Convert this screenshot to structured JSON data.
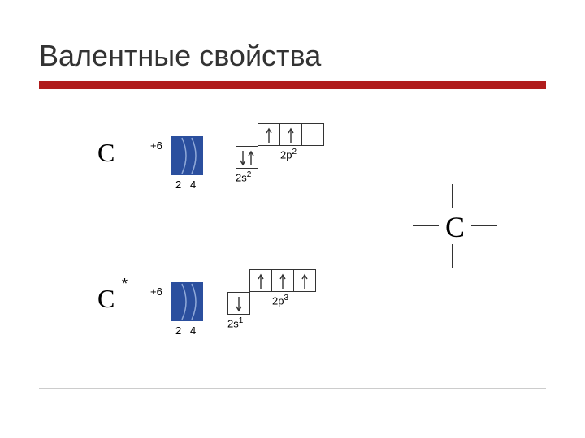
{
  "title": "Валентные свойства",
  "colors": {
    "accent_red": "#b01c1c",
    "shell_blue": "#2b4f9e",
    "shell_arc": "#8fa8d8",
    "line_gray": "#555555",
    "text": "#333333",
    "bottom_bar": "#cccccc"
  },
  "atom_ground": {
    "symbol": "C",
    "charge": "+6",
    "shell_counts": [
      "2",
      "4"
    ],
    "orbitals": {
      "s": {
        "label": "2s",
        "sup": "2",
        "arrows": [
          [
            "down",
            "up"
          ]
        ]
      },
      "p": {
        "label": "2p",
        "sup": "2",
        "arrows": [
          [
            "up"
          ],
          [
            "up"
          ],
          []
        ]
      }
    }
  },
  "atom_excited": {
    "symbol": "C",
    "star": "*",
    "charge": "+6",
    "shell_counts": [
      "2",
      "4"
    ],
    "orbitals": {
      "s": {
        "label": "2s",
        "sup": "1",
        "arrows": [
          [
            "down"
          ]
        ]
      },
      "p": {
        "label": "2p",
        "sup": "3",
        "arrows": [
          [
            "up"
          ],
          [
            "up"
          ],
          [
            "up"
          ]
        ]
      }
    }
  },
  "lewis": {
    "symbol": "C"
  }
}
